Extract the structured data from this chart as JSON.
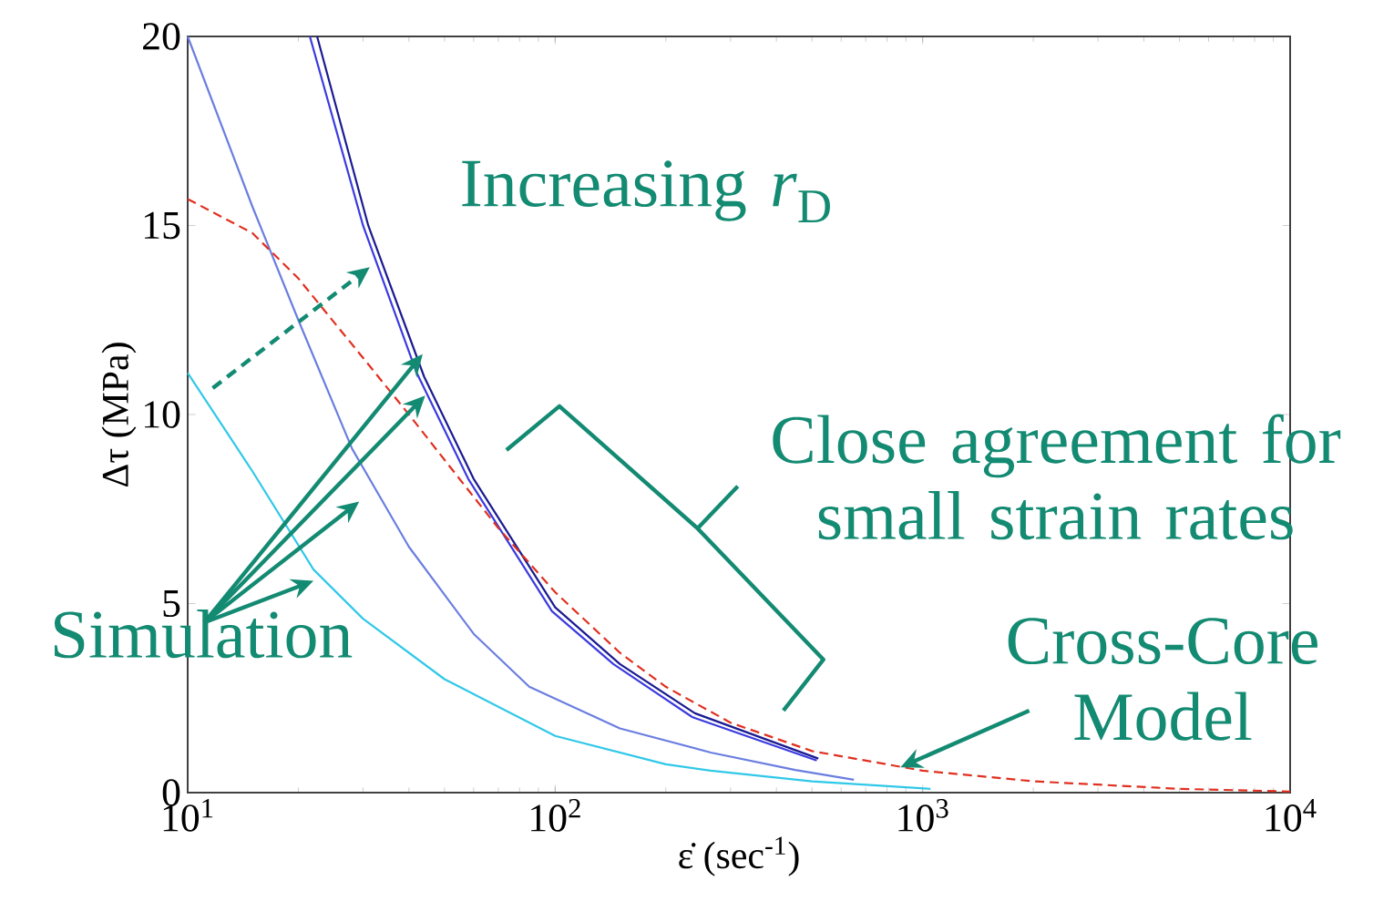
{
  "chart_data": {
    "type": "line",
    "xlabel": "ε̇ (sec$^{-1}$)",
    "ylabel": "Δτ (MPa)",
    "log": "x",
    "grid": false,
    "marker": "none",
    "xlim": [
      10,
      10000
    ],
    "ylim": [
      0,
      20
    ],
    "xticks": [
      {
        "value": 10,
        "label": "10$^{1}$"
      },
      {
        "value": 100,
        "label": "10$^{2}$"
      },
      {
        "value": 1000,
        "label": "10$^{3}$"
      },
      {
        "value": 10000,
        "label": "10$^{4}$"
      }
    ],
    "yticks": [
      0,
      5,
      10,
      15,
      20
    ],
    "series": [
      {
        "color": "#30c8e8",
        "x": [
          10,
          15,
          22,
          30,
          50,
          100,
          200,
          265,
          500,
          1050
        ],
        "values": [
          11.1,
          8.5,
          5.9,
          4.6,
          3.0,
          1.5,
          0.75,
          0.58,
          0.3,
          0.1
        ]
      },
      {
        "color": "#6a7ee0",
        "x": [
          10,
          15,
          20,
          28,
          40,
          60,
          85,
          150,
          265,
          450,
          650
        ],
        "values": [
          20,
          15.5,
          12.5,
          9.1,
          6.5,
          4.2,
          2.8,
          1.7,
          1.06,
          0.6,
          0.34
        ]
      },
      {
        "color": "#3a3ae0",
        "x": [
          21.5,
          30,
          42,
          58,
          98,
          144,
          236,
          515
        ],
        "values": [
          20,
          15,
          11.1,
          8.3,
          4.8,
          3.4,
          2.0,
          0.85
        ]
      },
      {
        "color": "#1a1a90",
        "x": [
          22.5,
          31,
          44,
          60,
          100,
          150,
          240,
          520
        ],
        "values": [
          20,
          15,
          11,
          8.3,
          4.9,
          3.4,
          2.1,
          0.9
        ]
      },
      {
        "color": "#e03020",
        "line_style": "dashed",
        "x": [
          10,
          15,
          20,
          30,
          40,
          50,
          70,
          100,
          150,
          200,
          300,
          500,
          1000,
          2000,
          5000,
          10000
        ],
        "values": [
          15.7,
          14.8,
          13.6,
          11.5,
          10.0,
          8.8,
          7.0,
          5.3,
          3.7,
          2.8,
          1.85,
          1.1,
          0.58,
          0.3,
          0.1,
          0.03
        ]
      }
    ],
    "annotations": [
      "Increasing *r*$_{D}$",
      "Close agreement for\nsmall strain rates",
      {
        "text": "Cross-Core\nModel",
        "x": 870,
        "y": 0.67
      },
      {
        "text": "Simulation",
        "x": 43.6,
        "y": 11.6
      }
    ]
  }
}
